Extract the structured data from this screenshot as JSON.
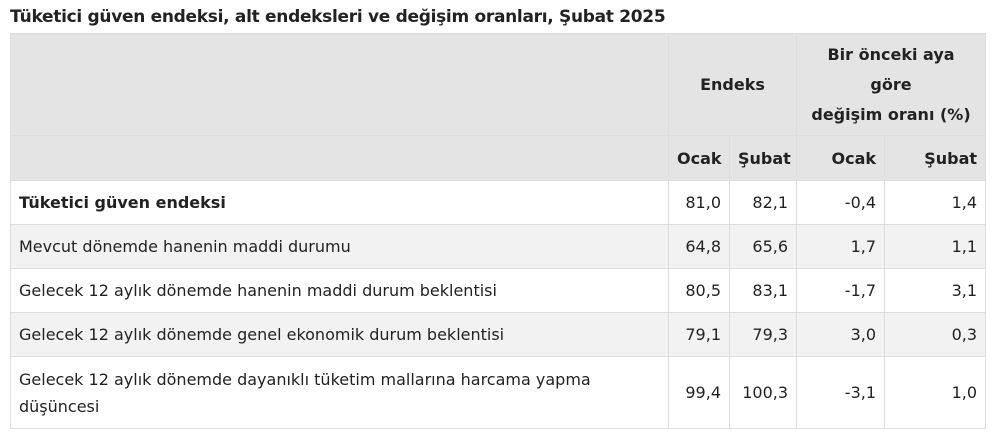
{
  "title": "Tüketici güven endeksi, alt endeksleri ve değişim oranları, Şubat 2025",
  "header": {
    "group1": "Endeks",
    "group2_line1": "Bir önceki aya",
    "group2_line2": "göre",
    "group2_line3": "değişim oranı (%)",
    "cols": [
      "Ocak",
      "Şubat",
      "Ocak",
      "Şubat"
    ]
  },
  "rows": [
    {
      "label": "Tüketici güven endeksi",
      "bold": true,
      "values": [
        "81,0",
        "82,1",
        "-0,4",
        "1,4"
      ]
    },
    {
      "label": "Mevcut dönemde hanenin maddi durumu",
      "values": [
        "64,8",
        "65,6",
        "1,7",
        "1,1"
      ]
    },
    {
      "label": "Gelecek 12 aylık dönemde hanenin maddi durum beklentisi",
      "values": [
        "80,5",
        "83,1",
        "-1,7",
        "3,1"
      ]
    },
    {
      "label": "Gelecek 12 aylık dönemde genel ekonomik durum beklentisi",
      "values": [
        "79,1",
        "79,3",
        "3,0",
        "0,3"
      ]
    },
    {
      "label": "Gelecek 12 aylık dönemde dayanıklı tüketim mallarına harcama yapma düşüncesi",
      "values": [
        "99,4",
        "100,3",
        "-3,1",
        "1,0"
      ]
    }
  ]
}
